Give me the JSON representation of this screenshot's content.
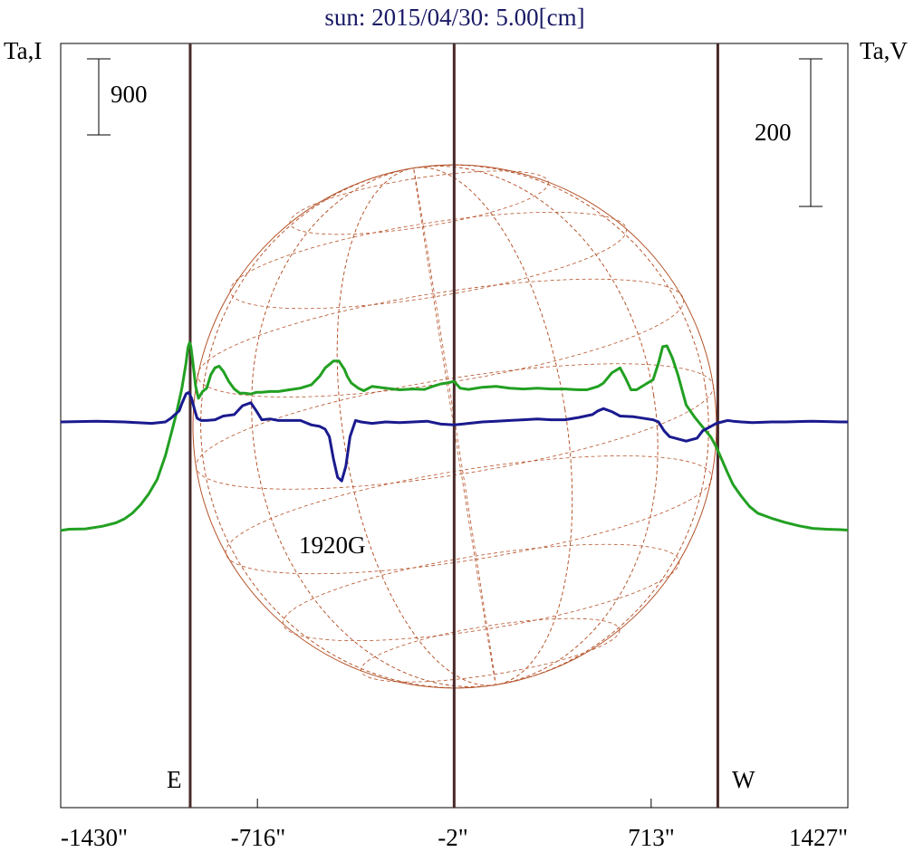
{
  "chart_data": {
    "type": "line",
    "title": "sun: 2015/04/30: 5.00[cm]",
    "y_left_label": "Ta,I",
    "y_right_label": "Ta,V",
    "x_tick_labels": [
      "-1430\"",
      "-716\"",
      "-2\"",
      "713\"",
      "1427\""
    ],
    "x_ticks": [
      -1430,
      -716,
      -2,
      713,
      1427
    ],
    "xlim": [
      -1430,
      1427
    ],
    "scale_bars": [
      {
        "label": "900",
        "axis": "I"
      },
      {
        "label": "200",
        "axis": "V"
      }
    ],
    "markers": [
      {
        "label": "E",
        "x": -960
      },
      {
        "label": "",
        "x": -2
      },
      {
        "label": "W",
        "x": 955
      }
    ],
    "annotations": [
      {
        "text": "1920G",
        "x": -390,
        "series": "V"
      }
    ],
    "solar_disk": {
      "center_x": 0,
      "radius": 950
    },
    "series": [
      {
        "id": "I",
        "color": "#22a022",
        "x": [
          -1430,
          -1400,
          -1340,
          -1280,
          -1230,
          -1200,
          -1170,
          -1140,
          -1110,
          -1080,
          -1050,
          -1030,
          -1010,
          -990,
          -975,
          -968,
          -962,
          -958,
          -950,
          -940,
          -930,
          -915,
          -900,
          -885,
          -870,
          -855,
          -840,
          -820,
          -800,
          -780,
          -760,
          -740,
          -720,
          -700,
          -670,
          -640,
          -600,
          -560,
          -520,
          -490,
          -470,
          -440,
          -420,
          -400,
          -390,
          -375,
          -350,
          -330,
          -300,
          -250,
          -200,
          -150,
          -110,
          -80,
          -50,
          -30,
          -15,
          -2,
          20,
          50,
          100,
          150,
          200,
          250,
          300,
          350,
          400,
          450,
          480,
          500,
          520,
          540,
          570,
          600,
          620,
          640,
          660,
          690,
          720,
          740,
          755,
          770,
          790,
          810,
          840,
          870,
          900,
          930,
          950,
          970,
          990,
          1010,
          1040,
          1070,
          1100,
          1150,
          1200,
          1250,
          1300,
          1350,
          1400,
          1427
        ],
        "y": [
          -1285,
          -1270,
          -1265,
          -1235,
          -1195,
          -1150,
          -1080,
          -980,
          -850,
          -680,
          -400,
          -150,
          100,
          400,
          700,
          880,
          940,
          900,
          700,
          420,
          280,
          360,
          400,
          560,
          640,
          660,
          600,
          480,
          390,
          340,
          340,
          330,
          350,
          350,
          360,
          360,
          380,
          400,
          440,
          540,
          640,
          720,
          720,
          620,
          540,
          460,
          400,
          370,
          420,
          400,
          380,
          390,
          385,
          420,
          450,
          460,
          470,
          480,
          400,
          385,
          410,
          420,
          400,
          390,
          400,
          390,
          390,
          380,
          380,
          400,
          420,
          460,
          580,
          640,
          520,
          380,
          380,
          440,
          500,
          700,
          890,
          900,
          760,
          560,
          200,
          60,
          -60,
          -180,
          -300,
          -450,
          -600,
          -740,
          -880,
          -1000,
          -1080,
          -1140,
          -1190,
          -1230,
          -1260,
          -1270,
          -1275,
          -1280
        ]
      },
      {
        "id": "V",
        "color": "#1a1a8f",
        "x": [
          -1430,
          -1300,
          -1200,
          -1100,
          -1050,
          -1030,
          -1000,
          -990,
          -975,
          -965,
          -955,
          -945,
          -935,
          -920,
          -900,
          -870,
          -840,
          -800,
          -770,
          -740,
          -720,
          -700,
          -670,
          -640,
          -600,
          -560,
          -520,
          -490,
          -470,
          -455,
          -440,
          -425,
          -410,
          -395,
          -380,
          -360,
          -340,
          -300,
          -250,
          -200,
          -150,
          -100,
          -50,
          -2,
          50,
          100,
          150,
          200,
          250,
          300,
          350,
          400,
          450,
          500,
          520,
          540,
          570,
          600,
          650,
          700,
          720,
          740,
          760,
          780,
          800,
          840,
          880,
          900,
          930,
          950,
          970,
          990,
          1010,
          1040,
          1080,
          1150,
          1200,
          1300,
          1400,
          1427
        ],
        "y": [
          0,
          1,
          0,
          -2,
          0,
          5,
          15,
          25,
          38,
          40,
          32,
          18,
          5,
          2,
          2,
          3,
          8,
          10,
          22,
          26,
          15,
          3,
          4,
          2,
          2,
          2,
          -4,
          -6,
          -10,
          -20,
          -50,
          -75,
          -80,
          -60,
          -20,
          2,
          0,
          -2,
          0,
          -1,
          0,
          1,
          -3,
          -4,
          -2,
          0,
          1,
          2,
          3,
          4,
          3,
          3,
          6,
          10,
          15,
          18,
          14,
          8,
          7,
          4,
          3,
          0,
          -12,
          -20,
          -22,
          -26,
          -22,
          -12,
          -6,
          -2,
          0,
          2,
          1,
          0,
          -1,
          0,
          0,
          1,
          0,
          0
        ]
      }
    ]
  }
}
